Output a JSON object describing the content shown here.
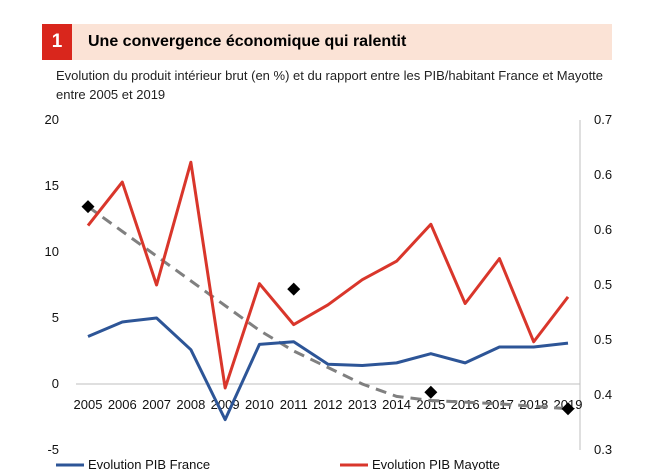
{
  "header": {
    "figure_number": "1",
    "title": "Une convergence économique qui ralentit"
  },
  "subtitle": "Evolution du produit intérieur brut (en %) et du rapport entre les PIB/habitant  France et Mayotte entre 2005 et 2019",
  "colors": {
    "france": "#2d5597",
    "mayotte": "#d9362b",
    "ratio_points": "#000000",
    "trend": "#808080",
    "banner": "#fbe3d6",
    "badge": "#d9261c"
  },
  "chart_data": {
    "type": "line",
    "x": [
      "2005",
      "2006",
      "2007",
      "2008",
      "2009",
      "2010",
      "2011",
      "2012",
      "2013",
      "2014",
      "2015",
      "2016",
      "2017",
      "2018",
      "2019"
    ],
    "series": [
      {
        "name": "Evolution PIB France",
        "axis": "left",
        "style": "line",
        "values": [
          3.6,
          4.7,
          5.0,
          2.6,
          -2.7,
          3.0,
          3.2,
          1.5,
          1.4,
          1.6,
          2.3,
          1.6,
          2.8,
          2.8,
          3.1
        ]
      },
      {
        "name": "Evolution  PIB Mayotte",
        "axis": "left",
        "style": "line",
        "values": [
          12.0,
          15.3,
          7.5,
          16.8,
          -0.3,
          7.6,
          4.5,
          6.0,
          7.9,
          9.3,
          12.1,
          6.1,
          9.5,
          3.2,
          6.6
        ]
      },
      {
        "name": "",
        "axis": "right",
        "style": "markers",
        "x": [
          "2005",
          "2011",
          "2015",
          "2019"
        ],
        "values": [
          0.595,
          0.495,
          0.37,
          0.35
        ]
      },
      {
        "name": "",
        "axis": "right",
        "style": "dashed-trend",
        "x": [
          "2005",
          "2006",
          "2007",
          "2008",
          "2009",
          "2010",
          "2011",
          "2012",
          "2013",
          "2014",
          "2015",
          "2016",
          "2017",
          "2018",
          "2019"
        ],
        "values": [
          0.595,
          0.565,
          0.535,
          0.505,
          0.475,
          0.445,
          0.42,
          0.4,
          0.38,
          0.365,
          0.36,
          0.358,
          0.356,
          0.353,
          0.35
        ]
      }
    ],
    "yaxis_left": {
      "ylim": [
        -5,
        20
      ],
      "ticks": [
        "-5",
        "0",
        "5",
        "10",
        "15",
        "20"
      ]
    },
    "yaxis_right": {
      "ylim": [
        0.3,
        0.7
      ],
      "ticks": [
        "0.3",
        "0.4",
        "0.5",
        "0.5",
        "0.6",
        "0.6",
        "0.7"
      ]
    },
    "grid": false,
    "legend_position": "bottom"
  }
}
